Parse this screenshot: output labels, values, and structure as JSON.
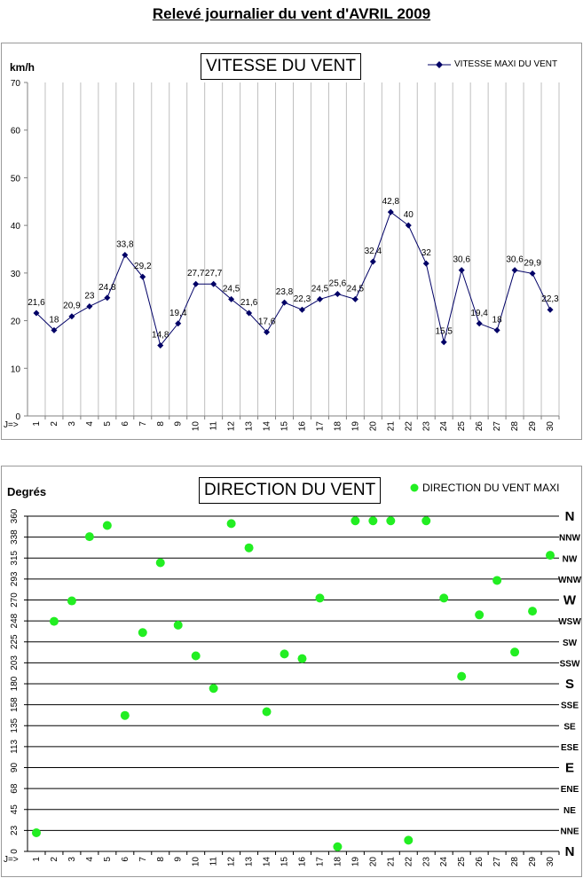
{
  "page": {
    "title": "Relevé journalier du vent d'AVRIL 2009"
  },
  "chart_data": [
    {
      "type": "line",
      "title": "VITESSE DU VENT",
      "ylabel": "km/h",
      "x_prefix": "J=>",
      "categories": [
        "1",
        "2",
        "3",
        "4",
        "5",
        "6",
        "7",
        "8",
        "9",
        "10",
        "11",
        "12",
        "13",
        "14",
        "15",
        "16",
        "17",
        "18",
        "19",
        "20",
        "21",
        "22",
        "23",
        "24",
        "25",
        "26",
        "27",
        "28",
        "29",
        "30"
      ],
      "ylim": [
        0,
        70
      ],
      "yticks": [
        "0",
        "10",
        "20",
        "30",
        "40",
        "50",
        "60",
        "70"
      ],
      "series": [
        {
          "name": "VITESSE MAXI DU VENT",
          "values": [
            21.6,
            18,
            20.9,
            23,
            24.8,
            33.8,
            29.2,
            14.8,
            19.4,
            27.7,
            27.7,
            24.5,
            21.6,
            17.6,
            23.8,
            22.3,
            24.5,
            25.6,
            24.5,
            32.4,
            42.8,
            40,
            32,
            15.5,
            30.6,
            19.4,
            18,
            30.6,
            29.9,
            22.3
          ],
          "labels": [
            "21,6",
            "18",
            "20,9",
            "23",
            "24,8",
            "33,8",
            "29,2",
            "14,8",
            "19,4",
            "27,7",
            "27,7",
            "24,5",
            "21,6",
            "17,6",
            "23,8",
            "22,3",
            "24,5",
            "25,6",
            "24,5",
            "32,4",
            "42,8",
            "40",
            "32",
            "15,5",
            "30,6",
            "19,4",
            "18",
            "30,6",
            "29,9",
            "22,3"
          ]
        }
      ],
      "grid": "vertical",
      "legend": "top-right",
      "color": "#000066"
    },
    {
      "type": "scatter",
      "title": "DIRECTION DU VENT",
      "ylabel": "Degrés",
      "x_prefix": "J=>",
      "categories": [
        "1",
        "2",
        "3",
        "4",
        "5",
        "6",
        "7",
        "8",
        "9",
        "10",
        "11",
        "12",
        "13",
        "14",
        "15",
        "16",
        "17",
        "18",
        "19",
        "20",
        "21",
        "22",
        "23",
        "24",
        "25",
        "26",
        "27",
        "28",
        "29",
        "30"
      ],
      "ylim": [
        0,
        360
      ],
      "yticks": [
        "0",
        "23",
        "45",
        "68",
        "90",
        "113",
        "135",
        "158",
        "180",
        "203",
        "225",
        "248",
        "270",
        "293",
        "315",
        "338",
        "360"
      ],
      "compass_labels": [
        "N",
        "NNE",
        "NE",
        "ENE",
        "E",
        "ESE",
        "SE",
        "SSE",
        "S",
        "SSW",
        "SW",
        "WSW",
        "W",
        "WNW",
        "NW",
        "NNW",
        "N"
      ],
      "series": [
        {
          "name": "DIRECTION DU VENT MAXI",
          "values": [
            20,
            247,
            269,
            338,
            350,
            146,
            235,
            310,
            243,
            210,
            175,
            352,
            326,
            150,
            212,
            207,
            272,
            5,
            355,
            355,
            355,
            12,
            355,
            272,
            188,
            254,
            291,
            214,
            258,
            318
          ]
        }
      ],
      "grid": "horizontal",
      "legend": "top-right",
      "color": "#22ee22"
    }
  ]
}
